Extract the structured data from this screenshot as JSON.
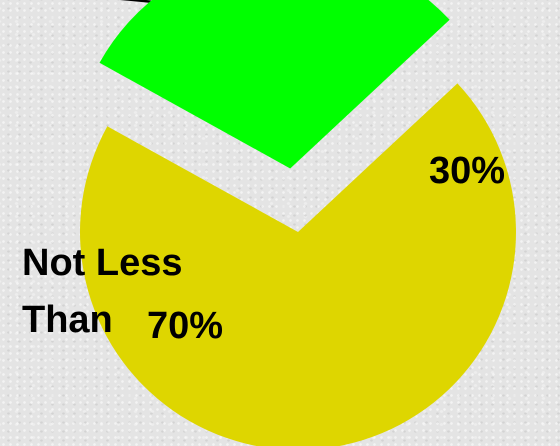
{
  "chart_data": {
    "type": "pie",
    "title": "",
    "slices": [
      {
        "label_lines": [
          "Not Less",
          "Than"
        ],
        "value_label": "70%",
        "value": 70,
        "color": "#ded600",
        "exploded": false
      },
      {
        "label_lines": [],
        "value_label": "30%",
        "value": 30,
        "color": "#00ff00",
        "exploded": true
      }
    ],
    "legend": "none",
    "grid": false
  }
}
